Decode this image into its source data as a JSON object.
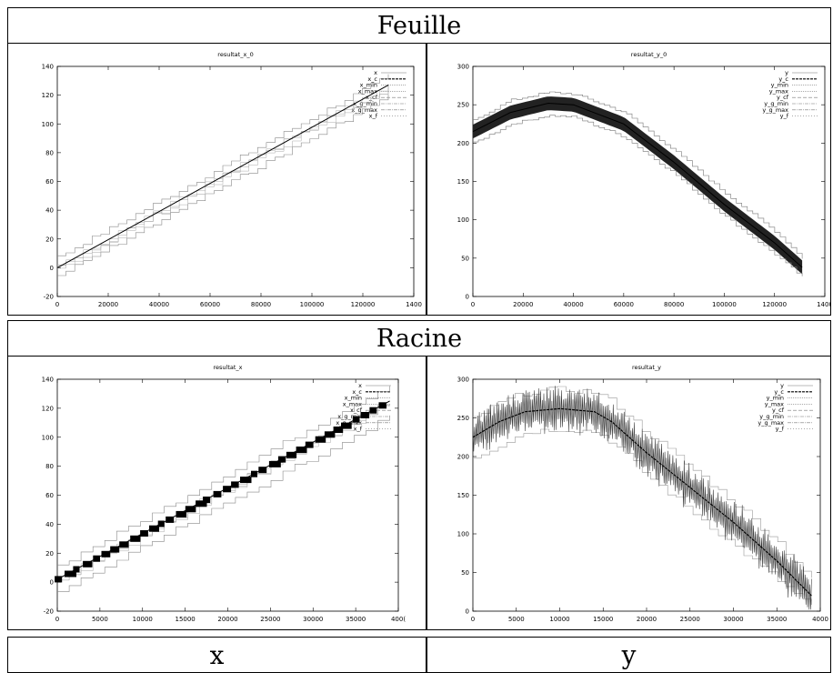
{
  "sections": [
    {
      "title": "Feuille"
    },
    {
      "title": "Racine"
    }
  ],
  "footer": {
    "left": "x",
    "right": "y"
  },
  "chart_data": [
    {
      "type": "line",
      "title": "resultat_x_0",
      "xlabel": "",
      "ylabel": "",
      "xlim": [
        0,
        140000
      ],
      "ylim": [
        -20,
        140
      ],
      "xticks": [
        "0",
        "20000",
        "40000",
        "60000",
        "80000",
        "100000",
        "120000",
        "1400"
      ],
      "yticks": [
        "-20",
        "0",
        "20",
        "40",
        "60",
        "80",
        "100",
        "120",
        "140"
      ],
      "legend": [
        "x",
        "x_c",
        "x_min",
        "x_max",
        "x_cf",
        "x_g_min",
        "x_g_max",
        "x_f"
      ],
      "legend_position": "top-right",
      "grid": false,
      "series": [
        {
          "name": "x",
          "x": [
            0,
            130000
          ],
          "y": [
            0,
            127
          ]
        },
        {
          "name": "x_min",
          "x": [
            0,
            130000
          ],
          "y": [
            -4,
            121
          ]
        },
        {
          "name": "x_max",
          "x": [
            0,
            130000
          ],
          "y": [
            6,
            132
          ]
        }
      ]
    },
    {
      "type": "line",
      "title": "resultat_y_0",
      "xlabel": "",
      "ylabel": "",
      "xlim": [
        0,
        140000
      ],
      "ylim": [
        0,
        300
      ],
      "xticks": [
        "0",
        "20000",
        "40000",
        "60000",
        "80000",
        "100000",
        "120000",
        "1400"
      ],
      "yticks": [
        "0",
        "50",
        "100",
        "150",
        "200",
        "250",
        "300"
      ],
      "legend": [
        "y",
        "y_c",
        "y_min",
        "y_max",
        "y_cf",
        "y_g_min",
        "y_g_max",
        "y_f"
      ],
      "legend_position": "top-right",
      "grid": false,
      "series": [
        {
          "name": "y",
          "x": [
            0,
            15000,
            30000,
            40000,
            60000,
            80000,
            100000,
            120000,
            131000
          ],
          "y": [
            215,
            240,
            252,
            250,
            225,
            175,
            120,
            70,
            38
          ]
        },
        {
          "name": "y_min",
          "x": [
            0,
            15000,
            30000,
            40000,
            60000,
            80000,
            100000,
            120000,
            131000
          ],
          "y": [
            200,
            225,
            236,
            234,
            208,
            160,
            105,
            55,
            25
          ]
        },
        {
          "name": "y_max",
          "x": [
            0,
            15000,
            30000,
            40000,
            60000,
            80000,
            100000,
            120000,
            131000
          ],
          "y": [
            230,
            256,
            266,
            264,
            240,
            190,
            135,
            85,
            50
          ]
        }
      ]
    },
    {
      "type": "line",
      "title": "resultat_x",
      "xlabel": "",
      "ylabel": "",
      "xlim": [
        0,
        40000
      ],
      "ylim": [
        -20,
        140
      ],
      "xticks": [
        "0",
        "5000",
        "10000",
        "15000",
        "20000",
        "25000",
        "30000",
        "35000",
        "400("
      ],
      "yticks": [
        "-20",
        "0",
        "20",
        "40",
        "60",
        "80",
        "100",
        "120",
        "140"
      ],
      "legend": [
        "x",
        "x_c",
        "x_min",
        "x_max",
        "x_cf",
        "x_g_min",
        "x_g_max",
        "x_f"
      ],
      "legend_position": "top-right",
      "grid": false,
      "series": [
        {
          "name": "x",
          "x": [
            0,
            39000
          ],
          "y": [
            2,
            125
          ]
        },
        {
          "name": "x_min",
          "x": [
            0,
            39000
          ],
          "y": [
            -5,
            116
          ]
        },
        {
          "name": "x_max",
          "x": [
            0,
            39000
          ],
          "y": [
            10,
            135
          ]
        }
      ]
    },
    {
      "type": "line",
      "title": "resultat_y",
      "xlabel": "",
      "ylabel": "",
      "xlim": [
        0,
        40000
      ],
      "ylim": [
        0,
        300
      ],
      "xticks": [
        "0",
        "5000",
        "10000",
        "15000",
        "20000",
        "25000",
        "30000",
        "35000",
        "4000"
      ],
      "yticks": [
        "0",
        "50",
        "100",
        "150",
        "200",
        "250",
        "300"
      ],
      "legend": [
        "y",
        "y_c",
        "y_min",
        "y_max",
        "y_cf",
        "y_g_min",
        "y_g_max",
        "y_f"
      ],
      "legend_position": "top-right",
      "grid": false,
      "series": [
        {
          "name": "y",
          "x": [
            0,
            3000,
            6000,
            10000,
            14000,
            16000,
            20000,
            25000,
            30000,
            35000,
            39000
          ],
          "y": [
            225,
            245,
            258,
            262,
            258,
            245,
            205,
            160,
            115,
            65,
            20
          ]
        },
        {
          "name": "y_min",
          "x": [
            0,
            3000,
            6000,
            10000,
            14000,
            16000,
            20000,
            25000,
            30000,
            35000,
            39000
          ],
          "y": [
            200,
            215,
            232,
            236,
            232,
            218,
            175,
            130,
            85,
            40,
            5
          ]
        },
        {
          "name": "y_max",
          "x": [
            0,
            3000,
            6000,
            10000,
            14000,
            16000,
            20000,
            25000,
            30000,
            35000,
            39000
          ],
          "y": [
            250,
            270,
            283,
            287,
            283,
            270,
            230,
            185,
            140,
            90,
            40
          ]
        }
      ]
    }
  ]
}
